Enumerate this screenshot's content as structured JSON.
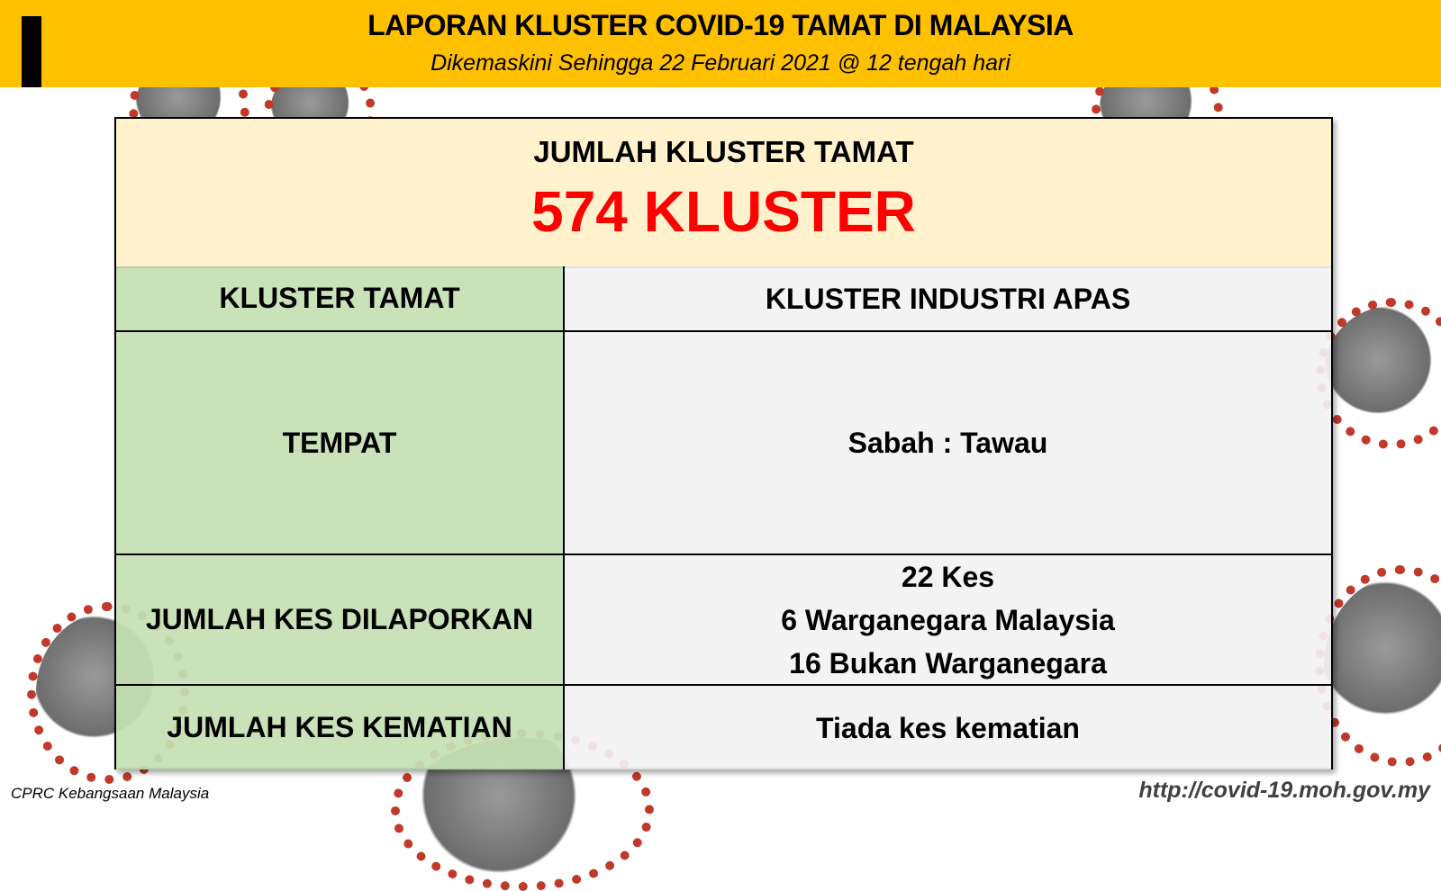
{
  "header": {
    "title": "LAPORAN KLUSTER COVID-19 TAMAT DI MALAYSIA",
    "subtitle": "Dikemaskini Sehingga 22 Februari 2021 @ 12 tengah hari"
  },
  "summary": {
    "label": "JUMLAH KLUSTER TAMAT",
    "count": "574 KLUSTER"
  },
  "rows": [
    {
      "label": "KLUSTER TAMAT",
      "values": [
        "KLUSTER INDUSTRI APAS"
      ]
    },
    {
      "label": "TEMPAT",
      "values": [
        "Sabah : Tawau"
      ]
    },
    {
      "label": "JUMLAH KES DILAPORKAN",
      "values": [
        "22 Kes",
        "6 Warganegara Malaysia",
        "16 Bukan Warganegara"
      ]
    },
    {
      "label": "JUMLAH KES KEMATIAN",
      "values": [
        "Tiada kes kematian"
      ]
    }
  ],
  "footer": {
    "left": "CPRC Kebangsaan Malaysia",
    "right": "http://covid-19.moh.gov.my"
  },
  "colors": {
    "header": "#FFC000",
    "summary_bg": "#FFF2CC",
    "count": "#FF0000",
    "label_bg": "#C5E0B4",
    "value_bg": "#F2F2F2"
  },
  "decorations": [
    "virus-illustration"
  ]
}
